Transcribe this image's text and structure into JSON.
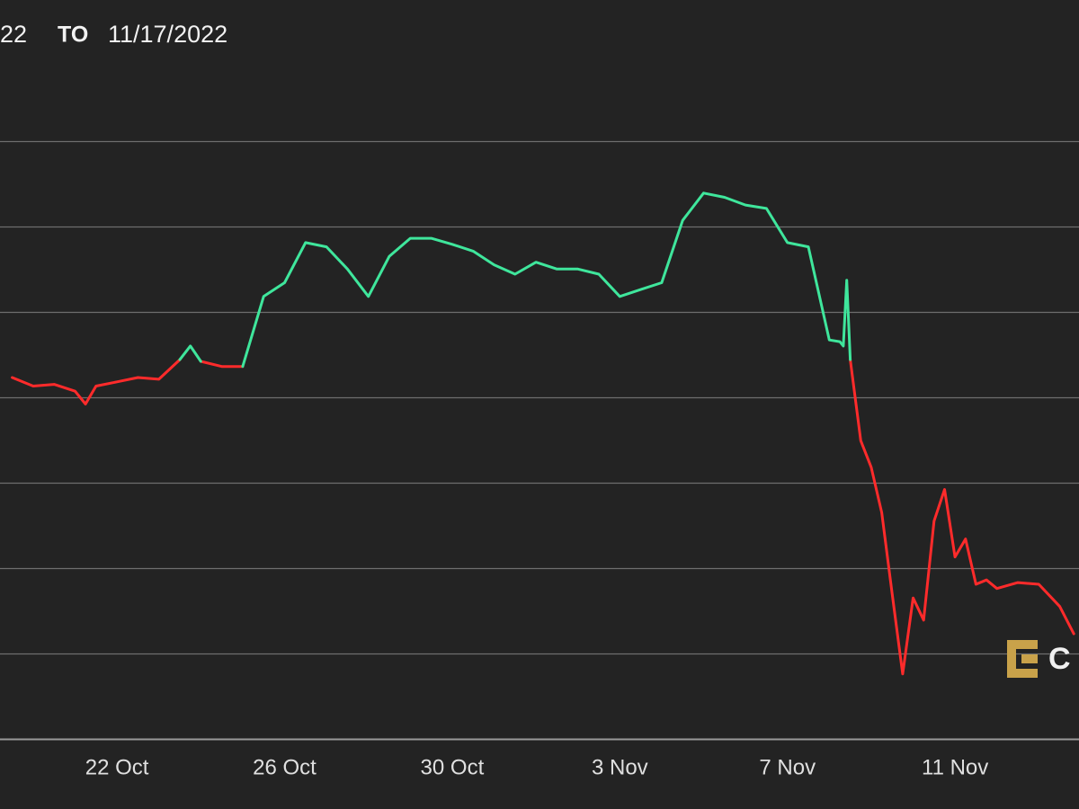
{
  "chart_data": {
    "type": "line",
    "header_from": "22",
    "header_to": "TO",
    "header_date": "11/17/2022",
    "logo_text": "C",
    "x": [
      "2022-10-19T12:00",
      "2022-10-20T00:00",
      "2022-10-20T12:00",
      "2022-10-21T00:00",
      "2022-10-21T06:00",
      "2022-10-21T12:00",
      "2022-10-22T00:00",
      "2022-10-22T12:00",
      "2022-10-23T00:00",
      "2022-10-23T12:00",
      "2022-10-23T18:00",
      "2022-10-24T00:00",
      "2022-10-24T12:00",
      "2022-10-25T00:00",
      "2022-10-25T12:00",
      "2022-10-26T00:00",
      "2022-10-26T12:00",
      "2022-10-27T00:00",
      "2022-10-27T12:00",
      "2022-10-28T00:00",
      "2022-10-28T12:00",
      "2022-10-29T00:00",
      "2022-10-29T12:00",
      "2022-10-30T00:00",
      "2022-10-30T12:00",
      "2022-10-31T00:00",
      "2022-10-31T12:00",
      "2022-11-01T00:00",
      "2022-11-01T12:00",
      "2022-11-02T00:00",
      "2022-11-02T12:00",
      "2022-11-03T00:00",
      "2022-11-03T12:00",
      "2022-11-04T00:00",
      "2022-11-04T12:00",
      "2022-11-05T00:00",
      "2022-11-05T12:00",
      "2022-11-06T00:00",
      "2022-11-06T12:00",
      "2022-11-07T00:00",
      "2022-11-07T12:00",
      "2022-11-08T00:00",
      "2022-11-08T06:00",
      "2022-11-08T08:00",
      "2022-11-08T10:00",
      "2022-11-08T12:00",
      "2022-11-08T18:00",
      "2022-11-09T00:00",
      "2022-11-09T06:00",
      "2022-11-09T12:00",
      "2022-11-09T18:00",
      "2022-11-10T00:00",
      "2022-11-10T06:00",
      "2022-11-10T12:00",
      "2022-11-10T18:00",
      "2022-11-11T00:00",
      "2022-11-11T06:00",
      "2022-11-11T12:00",
      "2022-11-11T18:00",
      "2022-11-12T00:00",
      "2022-11-12T12:00",
      "2022-11-13T00:00",
      "2022-11-13T12:00",
      "2022-11-13T20:00"
    ],
    "series": [
      {
        "color": "#ff2b2b",
        "values": [
          19230,
          19130,
          19150,
          19070,
          18920,
          19130,
          19180,
          19230,
          19210,
          19440,
          null,
          19420,
          19360,
          19360,
          null,
          null,
          null,
          null,
          null,
          null,
          null,
          null,
          null,
          null,
          null,
          null,
          null,
          null,
          null,
          null,
          null,
          null,
          null,
          null,
          null,
          null,
          null,
          null,
          null,
          null,
          null,
          null,
          null,
          null,
          null,
          19440,
          18490,
          18180,
          17650,
          16700,
          15760,
          16650,
          16390,
          17550,
          17920,
          17130,
          17340,
          16810,
          16860,
          16760,
          16830,
          16810,
          16550,
          16230
        ]
      },
      {
        "color": "#3fe69c",
        "values": [
          null,
          null,
          null,
          null,
          null,
          null,
          null,
          null,
          null,
          19440,
          19600,
          19420,
          null,
          19360,
          20180,
          20340,
          20810,
          20760,
          20500,
          20180,
          20650,
          20860,
          20860,
          20790,
          20710,
          20550,
          20440,
          20580,
          20500,
          20500,
          20440,
          20180,
          20260,
          20340,
          21070,
          21390,
          21340,
          21250,
          21210,
          20810,
          20760,
          19670,
          19650,
          19600,
          20370,
          19440,
          null,
          null,
          null,
          null,
          null,
          null,
          null,
          null,
          null,
          null,
          null,
          null,
          null,
          null,
          null,
          null,
          null,
          null
        ]
      }
    ],
    "xlim": [
      "2022-10-19T05:00",
      "2022-11-13T23:00"
    ],
    "xticks": [
      {
        "value": "2022-10-22T00:00",
        "label": "22 Oct"
      },
      {
        "value": "2022-10-26T00:00",
        "label": "26 Oct"
      },
      {
        "value": "2022-10-30T00:00",
        "label": "30 Oct"
      },
      {
        "value": "2022-11-03T00:00",
        "label": "3 Nov"
      },
      {
        "value": "2022-11-07T00:00",
        "label": "7 Nov"
      },
      {
        "value": "2022-11-11T00:00",
        "label": "11 Nov"
      }
    ],
    "ylim": [
      15000,
      23650
    ],
    "yticks": [
      15000,
      16000,
      17000,
      18000,
      19000,
      20000,
      21000,
      22000
    ],
    "grid": true
  }
}
